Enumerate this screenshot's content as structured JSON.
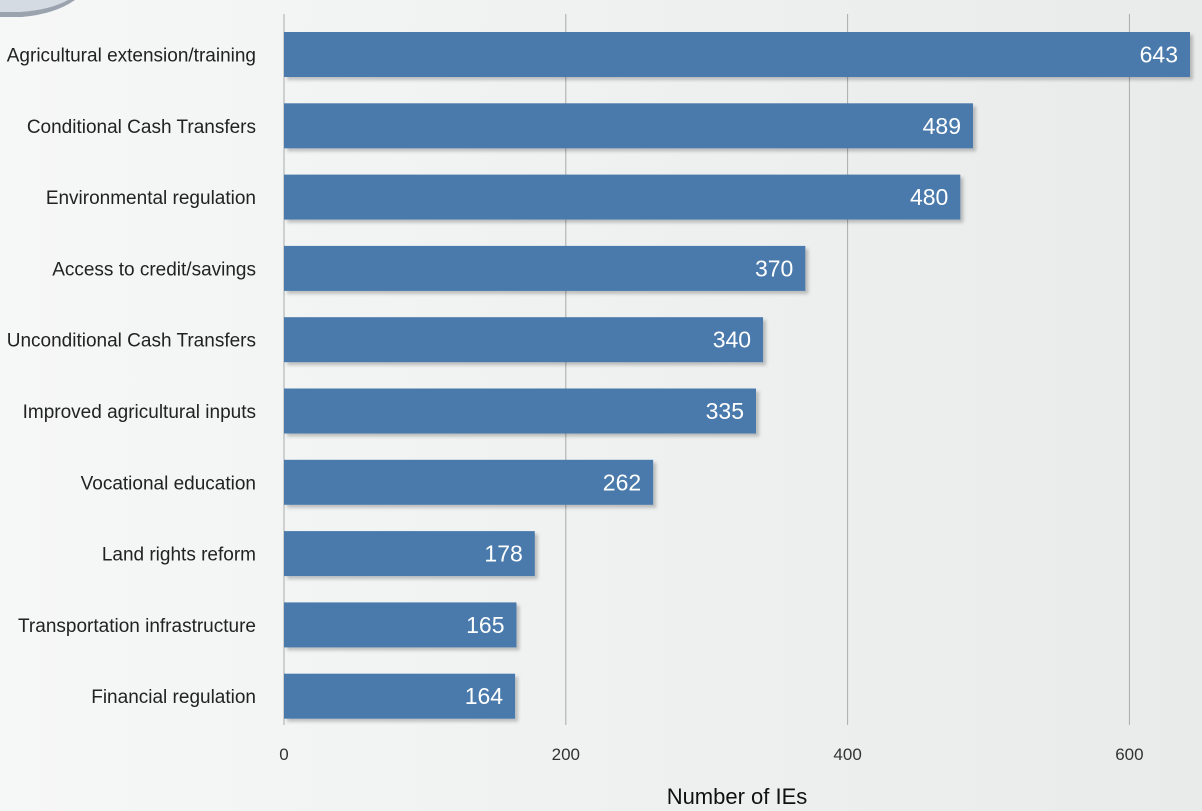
{
  "chart_data": {
    "type": "bar",
    "orientation": "horizontal",
    "categories": [
      "Agricultural extension/training",
      "Conditional Cash Transfers",
      "Environmental regulation",
      "Access to credit/savings",
      "Unconditional Cash Transfers",
      "Improved agricultural inputs",
      "Vocational education",
      "Land rights reform",
      "Transportation infrastructure",
      "Financial regulation"
    ],
    "values": [
      643,
      489,
      480,
      370,
      340,
      335,
      262,
      178,
      165,
      164
    ],
    "data_labels": [
      "643",
      "489",
      "480",
      "370",
      "340",
      "335",
      "262",
      "178",
      "165",
      "164"
    ],
    "xlabel": "Number of IEs",
    "ylabel": "",
    "xlim": [
      0,
      643
    ],
    "xticks": [
      0,
      200,
      400,
      600
    ],
    "xtick_labels": [
      "0",
      "200",
      "400",
      "600"
    ],
    "grid": "vertical",
    "bar_color": "#4a7aab"
  }
}
